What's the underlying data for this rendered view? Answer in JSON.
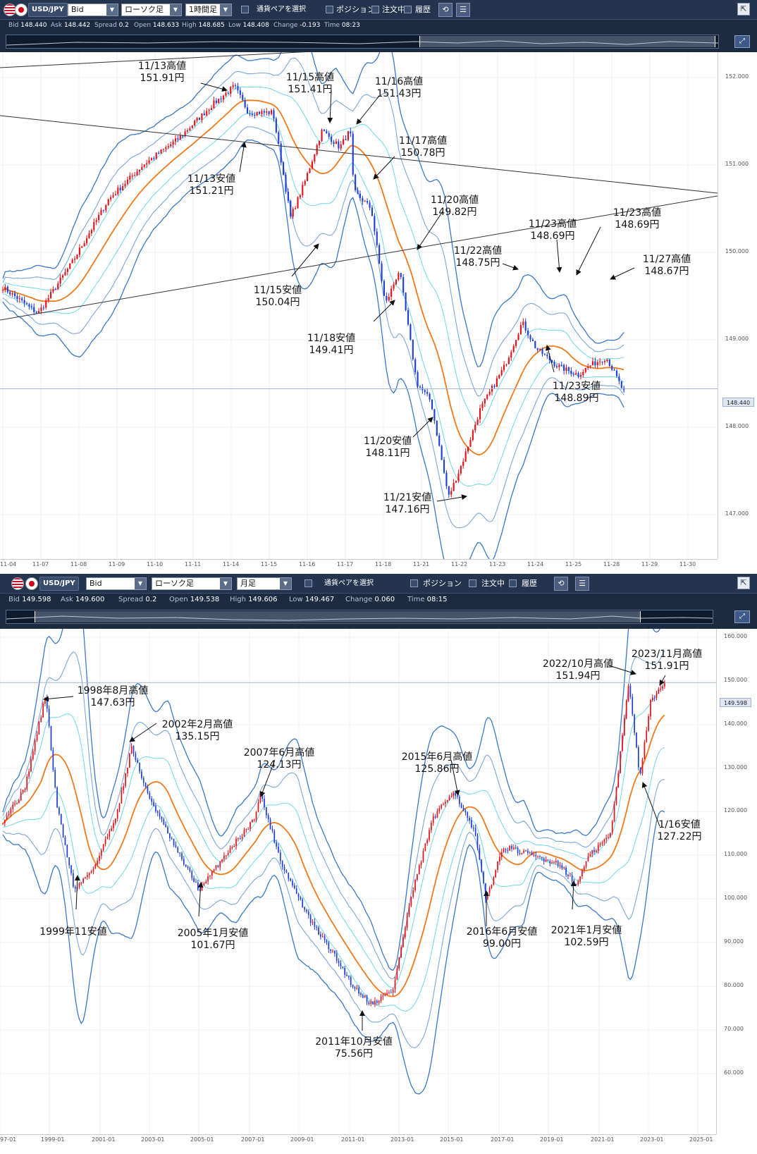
{
  "top": {
    "pair": "USD/JPY",
    "price_type": "Bid",
    "chart_type": "ローソク足",
    "timeframe": "1時間足",
    "pair_select_label": "通貨ペアを選択",
    "position_label": "ポジション",
    "orders_label": "注文中",
    "history_label": "履歴",
    "quote": {
      "bid_label": "Bid",
      "bid": "148.440",
      "ask_label": "Ask",
      "ask": "148.442",
      "spread_label": "Spread",
      "spread": "0.2",
      "open_label": "Open",
      "open": "148.633",
      "high_label": "High",
      "high": "148.685",
      "low_label": "Low",
      "low": "148.408",
      "change_label": "Change",
      "change": "-0.193",
      "time_label": "Time",
      "time": "08:23"
    },
    "y_ticks": [
      "152.000",
      "151.000",
      "150.000",
      "149.000",
      "148.000",
      "147.000"
    ],
    "current_price": "148.440",
    "x_ticks": [
      "11-04",
      "11-07",
      "11-08",
      "11-09",
      "11-10",
      "11-11",
      "11-14",
      "11-15",
      "11-16",
      "11-17",
      "11-18",
      "11-21",
      "11-22",
      "11-23",
      "11-24",
      "11-25",
      "11-28",
      "11-29",
      "11-30"
    ],
    "annotations": [
      {
        "l1": "11/13高値",
        "l2": "151.91円"
      },
      {
        "l1": "11/13安値",
        "l2": "151.21円"
      },
      {
        "l1": "11/15高値",
        "l2": "151.41円"
      },
      {
        "l1": "11/16高値",
        "l2": "151.43円"
      },
      {
        "l1": "11/17高値",
        "l2": "150.78円"
      },
      {
        "l1": "11/20高値",
        "l2": "149.82円"
      },
      {
        "l1": "11/15安値",
        "l2": "150.04円"
      },
      {
        "l1": "11/18安値",
        "l2": "149.41円"
      },
      {
        "l1": "11/20安値",
        "l2": "148.11円"
      },
      {
        "l1": "11/21安値",
        "l2": "147.16円"
      },
      {
        "l1": "11/22高値",
        "l2": "148.75円"
      },
      {
        "l1": "11/23高値",
        "l2": "148.69円"
      },
      {
        "l1": "11/23高値",
        "l2": "148.69円"
      },
      {
        "l1": "11/27高値",
        "l2": "148.67円"
      },
      {
        "l1": "11/23安値",
        "l2": "148.89円"
      }
    ]
  },
  "bottom": {
    "pair": "USD/JPY",
    "price_type": "Bid",
    "chart_type": "ローソク足",
    "timeframe": "月足",
    "pair_select_label": "通貨ペアを選択",
    "position_label": "ポジション",
    "orders_label": "注文中",
    "history_label": "履歴",
    "quote": {
      "bid_label": "Bid",
      "bid": "149.598",
      "ask_label": "Ask",
      "ask": "149.600",
      "spread_label": "Spread",
      "spread": "0.2",
      "open_label": "Open",
      "open": "149.538",
      "high_label": "High",
      "high": "149.606",
      "low_label": "Low",
      "low": "149.467",
      "change_label": "Change",
      "change": "0.060",
      "time_label": "Time",
      "time": "08:15"
    },
    "y_ticks": [
      "160.000",
      "150.000",
      "140.000",
      "130.000",
      "120.000",
      "110.000",
      "100.000",
      "90.000",
      "80.000",
      "70.000",
      "60.000"
    ],
    "current_price": "149.598",
    "x_ticks": [
      "97-01",
      "1999-01",
      "2001-01",
      "2003-01",
      "2005-01",
      "2007-01",
      "2009-01",
      "2011-01",
      "2013-01",
      "2015-01",
      "2017-01",
      "2019-01",
      "2021-01",
      "2023-01",
      "2025-01"
    ],
    "annotations": [
      {
        "l1": "1998年8月高値",
        "l2": "147.63円"
      },
      {
        "l1": "2002年2月高値",
        "l2": "135.15円"
      },
      {
        "l1": "2007年6月高値",
        "l2": "124.13円"
      },
      {
        "l1": "2015年6月高値",
        "l2": "125.86円"
      },
      {
        "l1": "2022/10月高値",
        "l2": "151.94円"
      },
      {
        "l1": "2023/11月高値",
        "l2": "151.91円"
      },
      {
        "l1": "1999年11安値",
        "l2": ""
      },
      {
        "l1": "2005年1月安値",
        "l2": "101.67円"
      },
      {
        "l1": "2011年10月安値",
        "l2": "75.56円"
      },
      {
        "l1": "2016年6月安値",
        "l2": "99.00円"
      },
      {
        "l1": "2021年1月安値",
        "l2": "102.59円"
      },
      {
        "l1": "1/16安値",
        "l2": "127.22円"
      }
    ]
  },
  "colors": {
    "toolbar_bg": "#24344f",
    "up_candle": "#e0121b",
    "down_candle": "#1f3fd6",
    "ma": "#f07a1c",
    "band_inner": "#6fd7e8",
    "band_mid": "#7aa7d9",
    "band_outer": "#3a78c7"
  },
  "chart_data": [
    {
      "type": "candlestick",
      "title": "USD/JPY 1時間足",
      "y_range": [
        146.8,
        152.3
      ],
      "x_labels": [
        "11-04",
        "11-07",
        "11-08",
        "11-09",
        "11-10",
        "11-11",
        "11-14",
        "11-15",
        "11-16",
        "11-17",
        "11-18",
        "11-21",
        "11-22",
        "11-23",
        "11-24",
        "11-25",
        "11-28",
        "11-29",
        "11-30"
      ],
      "path": [
        [
          0,
          149.6
        ],
        [
          0.05,
          149.3
        ],
        [
          0.1,
          149.9
        ],
        [
          0.15,
          150.6
        ],
        [
          0.2,
          151.0
        ],
        [
          0.25,
          151.3
        ],
        [
          0.3,
          151.7
        ],
        [
          0.33,
          151.9
        ],
        [
          0.35,
          151.6
        ],
        [
          0.385,
          151.6
        ],
        [
          0.41,
          150.4
        ],
        [
          0.43,
          150.8
        ],
        [
          0.455,
          151.4
        ],
        [
          0.48,
          151.2
        ],
        [
          0.495,
          151.4
        ],
        [
          0.5,
          150.7
        ],
        [
          0.525,
          150.5
        ],
        [
          0.545,
          149.4
        ],
        [
          0.565,
          149.8
        ],
        [
          0.59,
          148.5
        ],
        [
          0.61,
          148.3
        ],
        [
          0.635,
          147.2
        ],
        [
          0.655,
          147.6
        ],
        [
          0.68,
          148.2
        ],
        [
          0.715,
          148.7
        ],
        [
          0.74,
          149.2
        ],
        [
          0.76,
          148.9
        ],
        [
          0.79,
          148.7
        ],
        [
          0.82,
          148.6
        ],
        [
          0.835,
          148.7
        ],
        [
          0.86,
          148.8
        ],
        [
          0.885,
          148.4
        ]
      ]
    },
    {
      "type": "candlestick",
      "title": "USD/JPY 月足",
      "y_range": [
        58,
        165
      ],
      "x_labels": [
        "97-01",
        "1999-01",
        "2001-01",
        "2003-01",
        "2005-01",
        "2007-01",
        "2009-01",
        "2011-01",
        "2013-01",
        "2015-01",
        "2017-01",
        "2019-01",
        "2021-01",
        "2023-01",
        "2025-01"
      ],
      "path": [
        [
          0,
          118
        ],
        [
          0.03,
          125
        ],
        [
          0.06,
          147
        ],
        [
          0.075,
          122
        ],
        [
          0.1,
          102
        ],
        [
          0.13,
          108
        ],
        [
          0.16,
          120
        ],
        [
          0.18,
          135
        ],
        [
          0.2,
          125
        ],
        [
          0.24,
          112
        ],
        [
          0.275,
          102
        ],
        [
          0.31,
          110
        ],
        [
          0.35,
          118
        ],
        [
          0.36,
          124
        ],
        [
          0.39,
          108
        ],
        [
          0.43,
          95
        ],
        [
          0.46,
          88
        ],
        [
          0.49,
          80
        ],
        [
          0.515,
          76
        ],
        [
          0.545,
          79
        ],
        [
          0.57,
          100
        ],
        [
          0.6,
          118
        ],
        [
          0.63,
          125
        ],
        [
          0.66,
          115
        ],
        [
          0.675,
          100
        ],
        [
          0.7,
          112
        ],
        [
          0.74,
          110
        ],
        [
          0.78,
          108
        ],
        [
          0.8,
          103
        ],
        [
          0.82,
          110
        ],
        [
          0.85,
          115
        ],
        [
          0.875,
          150
        ],
        [
          0.89,
          128
        ],
        [
          0.905,
          145
        ],
        [
          0.925,
          150
        ]
      ]
    }
  ]
}
